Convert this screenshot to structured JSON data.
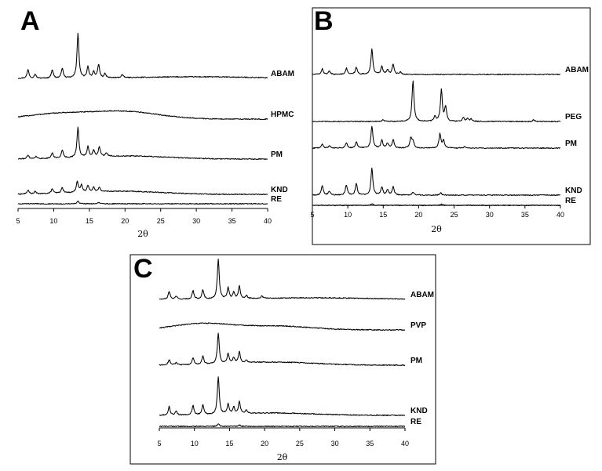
{
  "chart_data": [
    {
      "panel": "A",
      "type": "line",
      "xlabel": "2θ",
      "xlim": [
        5,
        40
      ],
      "xticks": [
        5,
        10,
        15,
        20,
        25,
        30,
        35,
        40
      ],
      "series": [
        {
          "name": "ABAM",
          "peaks": [
            [
              6.4,
              11
            ],
            [
              7.4,
              5
            ],
            [
              9.8,
              11
            ],
            [
              11.2,
              13
            ],
            [
              13.4,
              57
            ],
            [
              14.8,
              14
            ],
            [
              15.6,
              8
            ],
            [
              16.3,
              17
            ],
            [
              17.2,
              5
            ],
            [
              19.6,
              4
            ]
          ],
          "halo": [
            [
              30,
              8,
              2
            ]
          ]
        },
        {
          "name": "HPMC",
          "peaks": [],
          "halo": [
            [
              10,
              4,
              6
            ],
            [
              19.5,
              5,
              10
            ]
          ]
        },
        {
          "name": "PM",
          "peaks": [
            [
              6.4,
              5
            ],
            [
              7.5,
              3
            ],
            [
              9.8,
              7
            ],
            [
              11.2,
              10
            ],
            [
              13.4,
              38
            ],
            [
              14.8,
              13
            ],
            [
              15.6,
              8
            ],
            [
              16.4,
              12
            ],
            [
              17.4,
              4
            ]
          ],
          "halo": [
            [
              20,
              6,
              4
            ]
          ]
        },
        {
          "name": "KND",
          "peaks": [
            [
              6.4,
              5
            ],
            [
              7.4,
              3
            ],
            [
              9.8,
              6
            ],
            [
              11.2,
              7
            ],
            [
              13.3,
              14
            ],
            [
              13.9,
              9
            ],
            [
              14.8,
              8
            ],
            [
              15.6,
              6
            ],
            [
              16.4,
              5
            ]
          ],
          "halo": [
            [
              19,
              6,
              4
            ]
          ]
        },
        {
          "name": "RE",
          "peaks": [
            [
              13.4,
              3
            ],
            [
              16.3,
              1.5
            ]
          ],
          "halo": []
        }
      ]
    },
    {
      "panel": "B",
      "type": "line",
      "xlabel": "2θ",
      "xlim": [
        5,
        40
      ],
      "xticks": [
        5,
        10,
        15,
        20,
        25,
        30,
        35,
        40
      ],
      "series": [
        {
          "name": "ABAM",
          "peaks": [
            [
              6.4,
              7
            ],
            [
              7.4,
              4
            ],
            [
              9.8,
              8
            ],
            [
              11.2,
              9
            ],
            [
              13.4,
              32
            ],
            [
              14.8,
              10
            ],
            [
              15.6,
              6
            ],
            [
              16.4,
              13
            ],
            [
              17.4,
              3
            ]
          ],
          "halo": []
        },
        {
          "name": "PEG",
          "peaks": [
            [
              15.0,
              2
            ],
            [
              19.2,
              52
            ],
            [
              22.3,
              6
            ],
            [
              23.2,
              40
            ],
            [
              23.8,
              18
            ],
            [
              26.3,
              5
            ],
            [
              26.9,
              4
            ],
            [
              27.4,
              3
            ],
            [
              36.2,
              2
            ]
          ],
          "halo": []
        },
        {
          "name": "PM",
          "peaks": [
            [
              6.4,
              5
            ],
            [
              7.4,
              3
            ],
            [
              9.8,
              7
            ],
            [
              11.2,
              8
            ],
            [
              13.4,
              28
            ],
            [
              14.8,
              10
            ],
            [
              15.6,
              6
            ],
            [
              16.4,
              11
            ],
            [
              18.9,
              13
            ],
            [
              19.2,
              8
            ],
            [
              23.0,
              18
            ],
            [
              23.5,
              10
            ],
            [
              26.5,
              2
            ]
          ],
          "halo": []
        },
        {
          "name": "KND",
          "peaks": [
            [
              6.4,
              12
            ],
            [
              7.4,
              5
            ],
            [
              9.8,
              13
            ],
            [
              11.2,
              15
            ],
            [
              13.4,
              34
            ],
            [
              14.8,
              10
            ],
            [
              15.6,
              7
            ],
            [
              16.4,
              11
            ],
            [
              19.2,
              4
            ],
            [
              23.1,
              3
            ]
          ],
          "halo": []
        },
        {
          "name": "RE",
          "peaks": [
            [
              13.4,
              2
            ],
            [
              23.2,
              1.5
            ]
          ],
          "halo": []
        }
      ]
    },
    {
      "panel": "C",
      "type": "line",
      "xlabel": "2θ",
      "xlim": [
        5,
        40
      ],
      "xticks": [
        5,
        10,
        15,
        20,
        25,
        30,
        35,
        40
      ],
      "series": [
        {
          "name": "ABAM",
          "peaks": [
            [
              6.4,
              10
            ],
            [
              7.4,
              4
            ],
            [
              9.8,
              11
            ],
            [
              11.2,
              12
            ],
            [
              13.4,
              51
            ],
            [
              14.8,
              14
            ],
            [
              15.6,
              8
            ],
            [
              16.4,
              16
            ],
            [
              17.4,
              4
            ],
            [
              19.6,
              3
            ]
          ],
          "halo": [
            [
              27,
              8,
              2
            ]
          ]
        },
        {
          "name": "PVP",
          "peaks": [],
          "halo": [
            [
              11,
              4,
              8
            ],
            [
              21.5,
              5,
              5
            ]
          ]
        },
        {
          "name": "PM",
          "peaks": [
            [
              6.4,
              7
            ],
            [
              7.4,
              3
            ],
            [
              9.8,
              9
            ],
            [
              11.2,
              11
            ],
            [
              13.4,
              39
            ],
            [
              14.8,
              12
            ],
            [
              15.6,
              7
            ],
            [
              16.4,
              14
            ],
            [
              17.4,
              3
            ]
          ],
          "halo": [
            [
              21,
              6,
              4
            ]
          ]
        },
        {
          "name": "KND",
          "peaks": [
            [
              6.4,
              11
            ],
            [
              7.4,
              5
            ],
            [
              9.8,
              12
            ],
            [
              11.2,
              13
            ],
            [
              13.4,
              48
            ],
            [
              14.8,
              13
            ],
            [
              15.6,
              8
            ],
            [
              16.4,
              15
            ],
            [
              17.4,
              4
            ]
          ],
          "halo": [
            [
              21,
              6,
              3
            ]
          ]
        },
        {
          "name": "RE",
          "peaks": [
            [
              13.4,
              3
            ],
            [
              16.4,
              1.5
            ]
          ],
          "halo": []
        }
      ]
    }
  ]
}
